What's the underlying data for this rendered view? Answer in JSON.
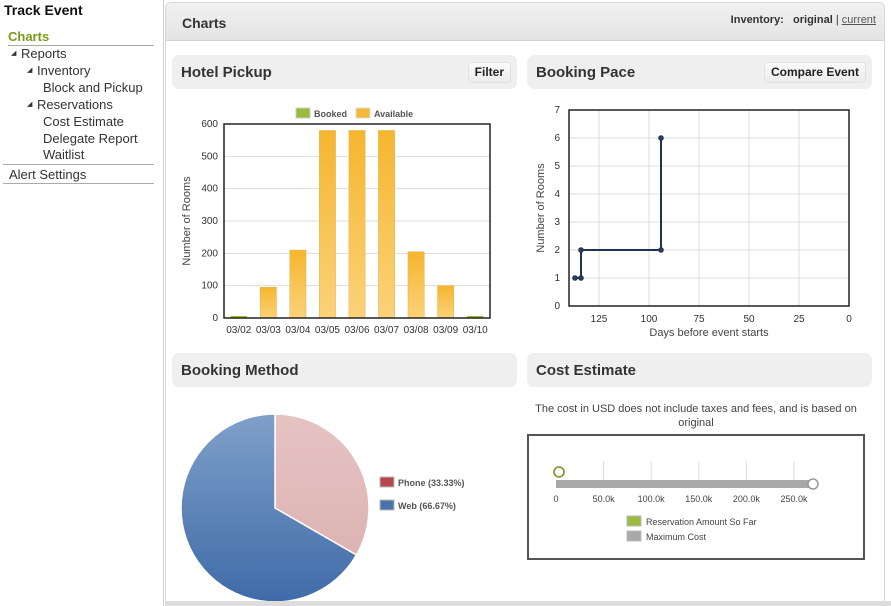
{
  "sidebar": {
    "app_title": "Track Event",
    "items": [
      {
        "label": "Charts",
        "active": true
      },
      {
        "label": "Reports",
        "expanded": true
      },
      {
        "label": "Inventory",
        "expanded": true
      },
      {
        "label": "Block and Pickup"
      },
      {
        "label": "Reservations",
        "expanded": true
      },
      {
        "label": "Cost Estimate"
      },
      {
        "label": "Delegate Report"
      },
      {
        "label": "Waitlist"
      },
      {
        "label": "Alert Settings"
      }
    ]
  },
  "header": {
    "title": "Charts",
    "inventory_label": "Inventory:",
    "inventory_original": "original",
    "separator": "|",
    "inventory_current": "current"
  },
  "panels": {
    "hotel_pickup": {
      "title": "Hotel Pickup",
      "button": "Filter"
    },
    "booking_pace": {
      "title": "Booking Pace",
      "button": "Compare Event"
    },
    "booking_method": {
      "title": "Booking Method"
    },
    "cost_estimate": {
      "title": "Cost Estimate",
      "note": "The cost in USD does not include taxes and fees, and is based on original"
    }
  },
  "colors": {
    "booked": "#9bbb3c",
    "available": "#f5b93a",
    "pace_line": "#1f3350",
    "phone": "#b5484e",
    "web": "#4a72ad",
    "accent": "#7a9a1a"
  },
  "chart_data": [
    {
      "type": "bar",
      "title": "Hotel Pickup",
      "stacked": true,
      "categories": [
        "03/02",
        "03/03",
        "03/04",
        "03/05",
        "03/06",
        "03/07",
        "03/08",
        "03/09",
        "03/10"
      ],
      "series": [
        {
          "name": "Booked",
          "values": [
            0,
            0,
            0,
            0,
            0,
            0,
            0,
            0,
            0
          ]
        },
        {
          "name": "Available",
          "values": [
            2,
            95,
            210,
            580,
            580,
            580,
            205,
            100,
            2
          ]
        }
      ],
      "ylabel": "Number of Rooms",
      "xlabel": "",
      "ylim": [
        0,
        600
      ],
      "yticks": [
        0,
        100,
        200,
        300,
        400,
        500,
        600
      ],
      "legend": "top-center",
      "grid": true
    },
    {
      "type": "line",
      "title": "Booking Pace",
      "step": true,
      "points": [
        [
          137,
          1
        ],
        [
          134,
          1
        ],
        [
          134,
          2
        ],
        [
          94,
          2
        ],
        [
          94,
          6
        ]
      ],
      "xlabel": "Days before event starts",
      "ylabel": "Number of Rooms",
      "xlim": [
        140,
        0
      ],
      "ylim": [
        0,
        7
      ],
      "xticks": [
        125,
        100,
        75,
        50,
        25,
        0
      ],
      "yticks": [
        0,
        1,
        2,
        3,
        4,
        5,
        6,
        7
      ],
      "grid": true
    },
    {
      "type": "pie",
      "title": "Booking Method",
      "slices": [
        {
          "label": "Phone (33.33%)",
          "name": "Phone",
          "value": 33.33
        },
        {
          "label": "Web (66.67%)",
          "name": "Web",
          "value": 66.67
        }
      ],
      "legend": "right"
    },
    {
      "type": "bar",
      "title": "Cost Estimate",
      "orientation": "horizontal",
      "series": [
        {
          "name": "Reservation Amount So Far",
          "value": 0
        },
        {
          "name": "Maximum Cost",
          "value": 270000
        }
      ],
      "xlim": [
        0,
        270000
      ],
      "xticks": [
        0,
        50000,
        100000,
        150000,
        200000,
        250000
      ],
      "xtick_labels": [
        "0",
        "50.0k",
        "100.0k",
        "150.0k",
        "200.0k",
        "250.0k"
      ],
      "legend": "bottom-center"
    }
  ]
}
